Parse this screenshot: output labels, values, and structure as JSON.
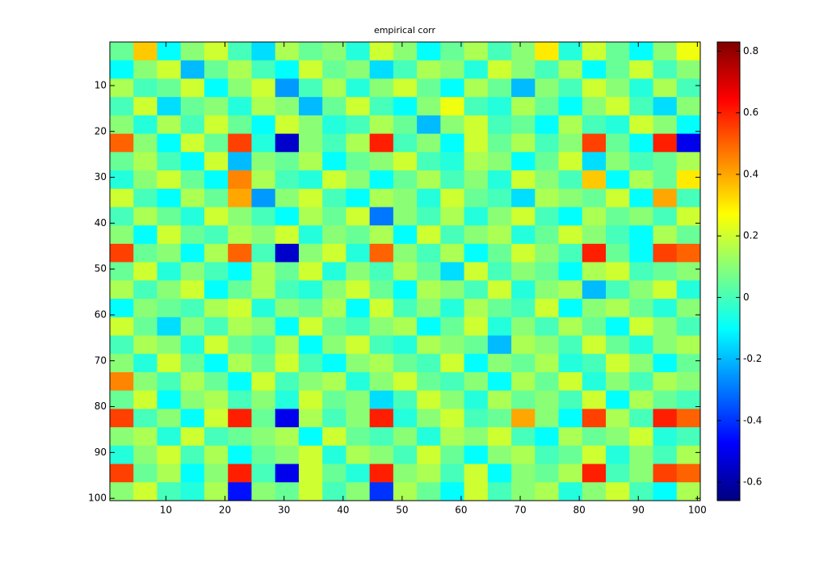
{
  "chart_data": {
    "type": "heatmap",
    "title": "empirical corr",
    "x": [
      2.5,
      6.5,
      10.5,
      14.5,
      18.5,
      22.5,
      26.5,
      30.5,
      34.5,
      38.5,
      42.5,
      46.5,
      50.5,
      54.5,
      58.5,
      62.5,
      66.5,
      70.5,
      74.5,
      78.5,
      82.5,
      86.5,
      90.5,
      94.5,
      98.5
    ],
    "y": [
      2.5,
      6.5,
      10.5,
      14.5,
      18.5,
      22.5,
      26.5,
      30.5,
      34.5,
      38.5,
      42.5,
      46.5,
      50.5,
      54.5,
      58.5,
      62.5,
      66.5,
      70.5,
      74.5,
      78.5,
      82.5,
      86.5,
      90.5,
      94.5,
      98.5
    ],
    "xlim": [
      0.5,
      100.5
    ],
    "ylim": [
      100.5,
      0.5
    ],
    "xticks": [
      10,
      20,
      30,
      40,
      50,
      60,
      70,
      80,
      90,
      100
    ],
    "yticks": [
      10,
      20,
      30,
      40,
      50,
      60,
      70,
      80,
      90,
      100
    ],
    "clim": [
      -0.66,
      0.83
    ],
    "cticks": [
      -0.6,
      -0.4,
      -0.2,
      0,
      0.2,
      0.4,
      0.6,
      0.8
    ],
    "colormap": "jet",
    "values": [
      [
        0.05,
        0.35,
        -0.1,
        0.1,
        0.2,
        0,
        -0.15,
        0.15,
        0.05,
        0.1,
        -0.05,
        0.2,
        0.1,
        -0.1,
        0.05,
        0.15,
        0,
        0.1,
        0.3,
        -0.05,
        0.2,
        0.05,
        -0.1,
        0.1,
        0.25
      ],
      [
        -0.1,
        0.1,
        0.2,
        -0.2,
        0.05,
        0.15,
        0,
        -0.1,
        0.2,
        0.05,
        0.1,
        -0.15,
        0,
        0.15,
        0.1,
        -0.05,
        0.2,
        0.1,
        0,
        0.15,
        -0.1,
        0.05,
        0.2,
        0,
        0.1
      ],
      [
        0.15,
        0,
        0.05,
        0.2,
        -0.1,
        0.1,
        0.2,
        -0.25,
        0,
        0.15,
        -0.05,
        0.1,
        0.2,
        0.05,
        -0.1,
        0.15,
        0.05,
        -0.2,
        0.1,
        0,
        0.2,
        0.1,
        -0.05,
        0.15,
        0
      ],
      [
        0,
        0.2,
        -0.15,
        0.05,
        0.1,
        -0.05,
        0.15,
        0.1,
        -0.2,
        0.05,
        0.2,
        0,
        -0.1,
        0.1,
        0.25,
        0,
        -0.05,
        0.15,
        0.05,
        -0.1,
        0.1,
        0.2,
        0,
        -0.15,
        0.1
      ],
      [
        0.1,
        -0.05,
        0.15,
        0,
        0.2,
        0.05,
        -0.1,
        0.2,
        0.1,
        -0.05,
        0,
        0.15,
        0.05,
        -0.2,
        0.1,
        0.2,
        0,
        0.05,
        -0.1,
        0.15,
        0,
        -0.05,
        0.2,
        0.1,
        -0.1
      ],
      [
        0.5,
        0.1,
        -0.1,
        0.2,
        0.05,
        0.55,
        -0.05,
        -0.55,
        0.1,
        0,
        0.15,
        0.6,
        0,
        0.1,
        -0.1,
        0.2,
        0.05,
        0.15,
        0,
        0.1,
        0.55,
        0.05,
        -0.1,
        0.6,
        -0.5
      ],
      [
        0.05,
        0.15,
        0,
        -0.1,
        0.2,
        -0.2,
        0.1,
        0.05,
        0.15,
        -0.1,
        0.05,
        0.1,
        0.2,
        0,
        -0.05,
        0.15,
        0.1,
        -0.1,
        0.05,
        0.2,
        -0.15,
        0.1,
        0,
        0.05,
        0.15
      ],
      [
        -0.05,
        0.1,
        0.2,
        0.05,
        -0.1,
        0.45,
        0.15,
        0,
        -0.05,
        0.2,
        0.1,
        -0.1,
        0.05,
        0.15,
        0,
        0.1,
        -0.05,
        0.2,
        0.1,
        0,
        0.35,
        -0.1,
        0.15,
        0.05,
        0.3
      ],
      [
        0.2,
        0,
        -0.1,
        0.15,
        0.05,
        0.4,
        -0.25,
        0.1,
        0.2,
        0,
        -0.1,
        0.15,
        0.1,
        -0.05,
        0.2,
        0.05,
        0,
        -0.15,
        0.15,
        0.1,
        0.05,
        0.2,
        -0.1,
        0.4,
        0
      ],
      [
        0,
        0.15,
        0.05,
        -0.05,
        0.2,
        0.1,
        0,
        -0.1,
        0.15,
        0.05,
        0.2,
        -0.3,
        0.1,
        0,
        0.15,
        -0.05,
        0.1,
        0.2,
        0,
        -0.1,
        0.15,
        0.05,
        0.1,
        0,
        0.2
      ],
      [
        0.1,
        -0.1,
        0.2,
        0.05,
        0,
        0.15,
        0.1,
        0.2,
        -0.05,
        0.1,
        0.05,
        0.15,
        -0.1,
        0.2,
        0,
        0.1,
        0.15,
        -0.05,
        0.05,
        0.2,
        0.1,
        0,
        -0.1,
        0.15,
        0.05
      ],
      [
        0.55,
        0.05,
        0.1,
        -0.1,
        0.15,
        0.5,
        0,
        -0.55,
        0.1,
        0.2,
        -0.05,
        0.5,
        0.1,
        0,
        0.15,
        -0.1,
        0.05,
        0.2,
        0.1,
        0,
        0.6,
        0.05,
        -0.1,
        0.55,
        0.5
      ],
      [
        0.05,
        0.2,
        -0.05,
        0.1,
        0,
        -0.1,
        0.15,
        0.05,
        0.2,
        -0.05,
        0.1,
        0,
        0.15,
        0.05,
        -0.15,
        0.2,
        0,
        0.1,
        0.05,
        -0.1,
        0.15,
        0.2,
        0,
        0.05,
        0.1
      ],
      [
        0.15,
        0,
        0.1,
        0.2,
        -0.1,
        0.05,
        0.15,
        0,
        -0.05,
        0.1,
        0.2,
        0.05,
        -0.1,
        0.15,
        0.1,
        0,
        0.2,
        -0.05,
        0.1,
        0.15,
        -0.2,
        0,
        0.1,
        0.2,
        -0.05
      ],
      [
        -0.1,
        0.1,
        0.05,
        0,
        0.15,
        0.2,
        -0.05,
        0.1,
        0.05,
        0.15,
        -0.1,
        0.2,
        0,
        0.1,
        -0.05,
        0.15,
        0.05,
        0,
        0.2,
        -0.1,
        0.1,
        0.15,
        0.05,
        -0.05,
        0.1
      ],
      [
        0.2,
        0.05,
        -0.15,
        0.1,
        0,
        0.15,
        0.1,
        -0.1,
        0.2,
        0.05,
        0,
        0.1,
        0.15,
        -0.1,
        0.05,
        0.2,
        -0.05,
        0.1,
        0,
        0.15,
        0.05,
        -0.1,
        0.2,
        0.1,
        0
      ],
      [
        0,
        0.15,
        0.1,
        -0.05,
        0.2,
        0.05,
        0,
        0.15,
        -0.1,
        0.1,
        0.2,
        0,
        -0.05,
        0.15,
        0.1,
        0.05,
        -0.2,
        0.15,
        0.1,
        0,
        0.2,
        0.05,
        -0.05,
        0.1,
        0.15
      ],
      [
        0.1,
        -0.05,
        0.2,
        0.05,
        -0.1,
        0.15,
        0.05,
        0.2,
        0,
        -0.1,
        0.1,
        0.15,
        0.05,
        0,
        0.2,
        -0.1,
        0.1,
        0.05,
        0.15,
        -0.05,
        0,
        0.2,
        0.1,
        -0.1,
        0.05
      ],
      [
        0.45,
        0.1,
        0,
        0.15,
        0.05,
        -0.1,
        0.2,
        0,
        0.1,
        0.15,
        -0.05,
        0.1,
        0.2,
        0.05,
        0,
        0.1,
        -0.1,
        0.15,
        0.05,
        0.2,
        -0.05,
        0.1,
        0,
        0.15,
        0.1
      ],
      [
        0.05,
        0.2,
        -0.1,
        0.1,
        0.15,
        0,
        0.1,
        -0.05,
        0.2,
        0.05,
        0.1,
        -0.15,
        0,
        0.2,
        0.1,
        -0.05,
        0.15,
        0.05,
        0.1,
        0,
        0.2,
        -0.1,
        0.15,
        0.05,
        0
      ],
      [
        0.55,
        0,
        0.1,
        -0.1,
        0.2,
        0.6,
        0.05,
        -0.5,
        0.15,
        0,
        0.1,
        0.6,
        -0.05,
        0.1,
        0.2,
        0,
        0.05,
        0.4,
        0.1,
        -0.1,
        0.55,
        0.15,
        0,
        0.6,
        0.5
      ],
      [
        0.1,
        0.15,
        -0.05,
        0.2,
        0,
        0.05,
        0.1,
        0.15,
        -0.1,
        0.2,
        0.05,
        0,
        0.1,
        -0.05,
        0.15,
        0.1,
        0.2,
        0,
        -0.1,
        0.15,
        0.05,
        0.1,
        0.2,
        -0.05,
        0
      ],
      [
        -0.05,
        0.1,
        0.2,
        0,
        0.15,
        -0.1,
        0.05,
        0.1,
        0.2,
        -0.05,
        0.15,
        0.1,
        0,
        0.2,
        0.05,
        -0.1,
        0.1,
        0.15,
        0,
        0.05,
        0.2,
        -0.05,
        0.1,
        0,
        0.15
      ],
      [
        0.55,
        0.05,
        0.15,
        -0.1,
        0.1,
        0.6,
        0,
        -0.5,
        0.2,
        0.05,
        -0.05,
        0.6,
        0.1,
        0.15,
        0,
        0.2,
        -0.1,
        0.1,
        0.05,
        0.15,
        0.6,
        0,
        0.1,
        0.55,
        0.5
      ],
      [
        0.1,
        0.2,
        0,
        -0.05,
        0.15,
        -0.45,
        0.1,
        0.05,
        0.2,
        0,
        0.1,
        -0.4,
        0.15,
        0.05,
        -0.1,
        0.2,
        0,
        0.1,
        0.15,
        -0.05,
        0.1,
        0.2,
        0,
        -0.1,
        0.15
      ]
    ]
  }
}
